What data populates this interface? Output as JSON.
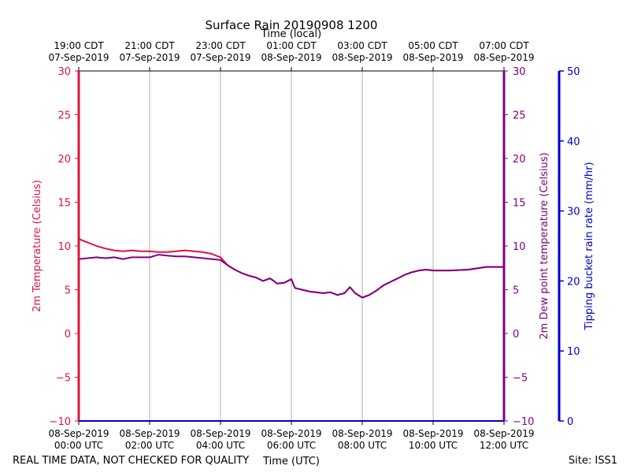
{
  "chart_data": {
    "type": "line",
    "title": "Surface Rain 20190908 1200",
    "top_axis_label": "Time (local)",
    "xlabel": "Time (UTC)",
    "ylabel_left": "2m Temperature (Celsius)",
    "ylabel_right": "2m Dew point temperature (Celsius)",
    "ylabel_rain": "Tipping bucket rain rate (mm/hr)",
    "footer_left": "REAL TIME DATA, NOT CHECKED FOR QUALITY",
    "footer_right": "Site: ISS1",
    "xlim_hours_utc": [
      0,
      12
    ],
    "ylim": [
      -10,
      30
    ],
    "ylim_rain": [
      0,
      50
    ],
    "grid": "vertical",
    "yticks": [
      -10,
      -5,
      0,
      5,
      10,
      15,
      20,
      25,
      30
    ],
    "yticks_labels": [
      "−10",
      "−5",
      "0",
      "5",
      "10",
      "15",
      "20",
      "25",
      "30"
    ],
    "rain_ticks": [
      0,
      10,
      20,
      30,
      40,
      50
    ],
    "rain_ticks_labels": [
      "0",
      "10",
      "20",
      "30",
      "40",
      "50"
    ],
    "x_ticks_hours": [
      0,
      2,
      4,
      6,
      8,
      10,
      12
    ],
    "bottom_ticks": [
      {
        "line1": "08-Sep-2019",
        "line2": "00:00 UTC"
      },
      {
        "line1": "08-Sep-2019",
        "line2": "02:00 UTC"
      },
      {
        "line1": "08-Sep-2019",
        "line2": "04:00 UTC"
      },
      {
        "line1": "08-Sep-2019",
        "line2": "06:00 UTC"
      },
      {
        "line1": "08-Sep-2019",
        "line2": "08:00 UTC"
      },
      {
        "line1": "08-Sep-2019",
        "line2": "10:00 UTC"
      },
      {
        "line1": "08-Sep-2019",
        "line2": "12:00 UTC"
      }
    ],
    "top_ticks": [
      {
        "line1": "19:00 CDT",
        "line2": "07-Sep-2019"
      },
      {
        "line1": "21:00 CDT",
        "line2": "07-Sep-2019"
      },
      {
        "line1": "23:00 CDT",
        "line2": "07-Sep-2019"
      },
      {
        "line1": "01:00 CDT",
        "line2": "08-Sep-2019"
      },
      {
        "line1": "03:00 CDT",
        "line2": "08-Sep-2019"
      },
      {
        "line1": "05:00 CDT",
        "line2": "08-Sep-2019"
      },
      {
        "line1": "07:00 CDT",
        "line2": "08-Sep-2019"
      }
    ],
    "colors": {
      "temperature": "#dc143c",
      "dewpoint": "#800080",
      "rain": "#0000cd",
      "grid": "#b0b0b0"
    },
    "series": [
      {
        "key": "temperature",
        "x": [
          0,
          0.25,
          0.5,
          0.75,
          1.0,
          1.25,
          1.5,
          1.75,
          2.0,
          2.25,
          2.5,
          2.75,
          3.0,
          3.25,
          3.5,
          3.75,
          4.0,
          4.2,
          4.4,
          4.6,
          4.8,
          5.0,
          5.2,
          5.4,
          5.6,
          5.8,
          6.0,
          6.1,
          6.3,
          6.5,
          6.7,
          6.9,
          7.1,
          7.3,
          7.5,
          7.65,
          7.8,
          8.0,
          8.2,
          8.4,
          8.6,
          8.8,
          9.0,
          9.2,
          9.4,
          9.6,
          9.8,
          10.0,
          10.5,
          11.0,
          11.5,
          12.0
        ],
        "y": [
          10.8,
          10.4,
          10.0,
          9.7,
          9.5,
          9.4,
          9.5,
          9.4,
          9.4,
          9.3,
          9.3,
          9.4,
          9.5,
          9.4,
          9.3,
          9.1,
          8.7,
          7.8,
          7.3,
          6.9,
          6.6,
          6.4,
          6.0,
          6.3,
          5.7,
          5.8,
          6.2,
          5.2,
          5.0,
          4.8,
          4.7,
          4.6,
          4.7,
          4.4,
          4.6,
          5.3,
          4.6,
          4.1,
          4.4,
          4.9,
          5.5,
          5.9,
          6.3,
          6.7,
          7.0,
          7.2,
          7.3,
          7.2,
          7.2,
          7.3,
          7.6,
          7.6
        ]
      },
      {
        "key": "dewpoint",
        "x": [
          0,
          0.25,
          0.5,
          0.75,
          1.0,
          1.25,
          1.5,
          1.75,
          2.0,
          2.25,
          2.5,
          2.75,
          3.0,
          3.25,
          3.5,
          3.75,
          4.0,
          4.2,
          4.4,
          4.6,
          4.8,
          5.0,
          5.2,
          5.4,
          5.6,
          5.8,
          6.0,
          6.1,
          6.3,
          6.5,
          6.7,
          6.9,
          7.1,
          7.3,
          7.5,
          7.65,
          7.8,
          8.0,
          8.2,
          8.4,
          8.6,
          8.8,
          9.0,
          9.2,
          9.4,
          9.6,
          9.8,
          10.0,
          10.5,
          11.0,
          11.5,
          12.0
        ],
        "y": [
          8.5,
          8.6,
          8.7,
          8.6,
          8.7,
          8.5,
          8.7,
          8.7,
          8.7,
          9.0,
          8.9,
          8.8,
          8.8,
          8.7,
          8.6,
          8.5,
          8.4,
          7.8,
          7.3,
          6.9,
          6.6,
          6.4,
          6.0,
          6.3,
          5.7,
          5.8,
          6.2,
          5.2,
          5.0,
          4.8,
          4.7,
          4.6,
          4.7,
          4.4,
          4.6,
          5.3,
          4.6,
          4.1,
          4.4,
          4.9,
          5.5,
          5.9,
          6.3,
          6.7,
          7.0,
          7.2,
          7.3,
          7.2,
          7.2,
          7.3,
          7.6,
          7.6
        ]
      }
    ]
  }
}
